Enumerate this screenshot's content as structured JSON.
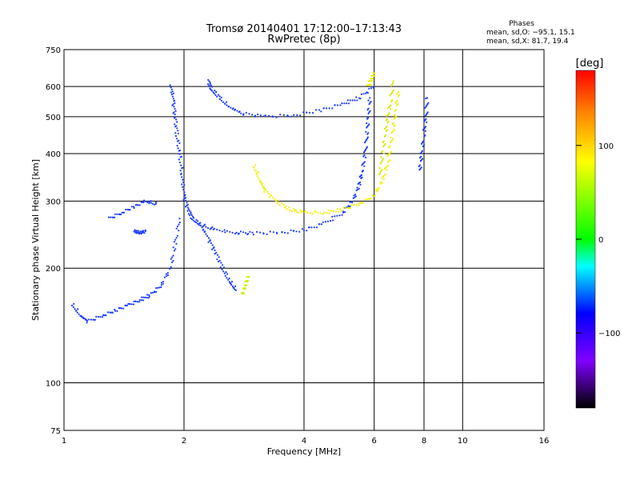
{
  "chart_data": {
    "type": "scatter",
    "title": "Tromsø 20140401 17:12:00–17:13:43",
    "subtitle": "RwPretec (8p)",
    "xlabel": "Frequency [MHz]",
    "ylabel": "Stationary phase Virtual Height [km]",
    "x_scale": "log",
    "y_scale": "log",
    "xlim": [
      1,
      16
    ],
    "ylim": [
      75,
      750
    ],
    "x_ticks": [
      1,
      2,
      4,
      6,
      8,
      10,
      16
    ],
    "x_tick_labels": [
      "1",
      "2",
      "4",
      "6",
      "8",
      "10",
      "16"
    ],
    "y_ticks": [
      75,
      100,
      200,
      300,
      400,
      500,
      600,
      750
    ],
    "y_tick_labels": [
      "75",
      "100",
      "200",
      "300",
      "400",
      "500",
      "600",
      "750"
    ],
    "grid": true,
    "stats": {
      "heading": "Phases",
      "line_o": "mean, sd,O: −95.1, 15.1",
      "line_x": "mean, sd,X:  81.7, 19.4"
    },
    "colorbar": {
      "label": "[deg]",
      "range": [
        -180,
        180
      ],
      "ticks": [
        100,
        0,
        -100
      ],
      "tick_labels": [
        "100",
        "0",
        "−100"
      ],
      "colors": [
        "#ff0000",
        "#ff8000",
        "#ffff00",
        "#00ff00",
        "#00ffff",
        "#0000ff",
        "#8000ff",
        "#000000"
      ]
    },
    "traces": [
      {
        "mode": "O",
        "phase": -95,
        "color": "#1a3cff",
        "points": [
          [
            1.86,
            600
          ],
          [
            1.88,
            550
          ],
          [
            1.9,
            500
          ],
          [
            1.92,
            450
          ],
          [
            1.95,
            400
          ],
          [
            1.98,
            350
          ],
          [
            2.0,
            310
          ],
          [
            2.05,
            285
          ],
          [
            2.1,
            270
          ],
          [
            2.2,
            260
          ],
          [
            2.4,
            252
          ],
          [
            2.7,
            248
          ],
          [
            3.0,
            247
          ],
          [
            3.5,
            248
          ],
          [
            4.0,
            252
          ],
          [
            4.5,
            262
          ],
          [
            5.0,
            280
          ],
          [
            5.3,
            300
          ],
          [
            5.5,
            330
          ],
          [
            5.6,
            360
          ],
          [
            5.7,
            400
          ],
          [
            5.75,
            450
          ],
          [
            5.8,
            500
          ],
          [
            5.85,
            560
          ]
        ]
      },
      {
        "mode": "O",
        "phase": -95,
        "color": "#1a3cff",
        "points": [
          [
            2.3,
            620
          ],
          [
            2.35,
            590
          ],
          [
            2.45,
            560
          ],
          [
            2.6,
            530
          ],
          [
            2.8,
            510
          ],
          [
            3.2,
            500
          ],
          [
            3.8,
            505
          ],
          [
            4.4,
            520
          ],
          [
            5.0,
            540
          ],
          [
            5.5,
            560
          ],
          [
            6.0,
            600
          ]
        ]
      },
      {
        "mode": "O",
        "phase": -95,
        "color": "#1a3cff",
        "points": [
          [
            1.05,
            160
          ],
          [
            1.1,
            150
          ],
          [
            1.15,
            145
          ],
          [
            1.25,
            150
          ],
          [
            1.35,
            155
          ],
          [
            1.45,
            160
          ],
          [
            1.55,
            165
          ],
          [
            1.65,
            170
          ],
          [
            1.75,
            180
          ],
          [
            1.85,
            200
          ],
          [
            1.9,
            230
          ],
          [
            1.95,
            270
          ]
        ]
      },
      {
        "mode": "O",
        "phase": -95,
        "color": "#1a3cff",
        "points": [
          [
            1.3,
            270
          ],
          [
            1.4,
            280
          ],
          [
            1.5,
            290
          ],
          [
            1.6,
            300
          ],
          [
            1.7,
            295
          ]
        ]
      },
      {
        "mode": "O",
        "phase": -95,
        "color": "#1a3cff",
        "points": [
          [
            1.5,
            250
          ],
          [
            1.55,
            248
          ],
          [
            1.6,
            250
          ]
        ]
      },
      {
        "mode": "O",
        "phase": -95,
        "color": "#1a3cff",
        "points": [
          [
            2.2,
            260
          ],
          [
            2.3,
            240
          ],
          [
            2.4,
            220
          ],
          [
            2.5,
            200
          ],
          [
            2.6,
            185
          ],
          [
            2.7,
            175
          ]
        ]
      },
      {
        "mode": "O",
        "phase": -95,
        "color": "#1a3cff",
        "points": [
          [
            7.8,
            360
          ],
          [
            7.9,
            400
          ],
          [
            8.0,
            450
          ],
          [
            8.1,
            500
          ],
          [
            8.15,
            560
          ]
        ]
      },
      {
        "mode": "X",
        "phase": 82,
        "color": "#f0f000",
        "points": [
          [
            3.0,
            370
          ],
          [
            3.1,
            340
          ],
          [
            3.2,
            320
          ],
          [
            3.4,
            300
          ],
          [
            3.7,
            285
          ],
          [
            4.0,
            280
          ],
          [
            4.5,
            280
          ],
          [
            5.0,
            285
          ],
          [
            5.5,
            295
          ],
          [
            6.0,
            310
          ],
          [
            6.3,
            340
          ],
          [
            6.5,
            380
          ],
          [
            6.6,
            420
          ],
          [
            6.7,
            470
          ],
          [
            6.8,
            520
          ],
          [
            6.9,
            580
          ]
        ]
      },
      {
        "mode": "X",
        "phase": 82,
        "color": "#d4e800",
        "points": [
          [
            6.2,
            350
          ],
          [
            6.3,
            400
          ],
          [
            6.4,
            450
          ],
          [
            6.5,
            500
          ],
          [
            6.6,
            550
          ],
          [
            6.7,
            620
          ]
        ]
      },
      {
        "mode": "X",
        "phase": 82,
        "color": "#c8f000",
        "points": [
          [
            2.8,
            170
          ],
          [
            2.85,
            180
          ],
          [
            2.9,
            190
          ]
        ]
      },
      {
        "mode": "X",
        "phase": 82,
        "color": "#f0f000",
        "points": [
          [
            5.8,
            600
          ],
          [
            5.9,
            630
          ],
          [
            6.0,
            650
          ]
        ]
      }
    ]
  }
}
